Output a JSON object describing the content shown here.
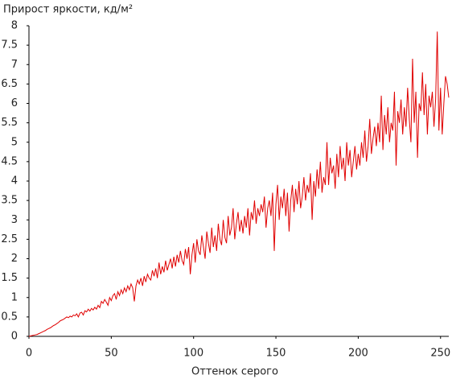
{
  "chart_data": {
    "type": "line",
    "title": "Прирост яркости, кд/м²",
    "x_label": "Оттенок серого",
    "color": "#e00000",
    "x": [
      0,
      1,
      2,
      3,
      4,
      5,
      6,
      7,
      8,
      9,
      10,
      11,
      12,
      13,
      14,
      15,
      16,
      17,
      18,
      19,
      20,
      21,
      22,
      23,
      24,
      25,
      26,
      27,
      28,
      29,
      30,
      31,
      32,
      33,
      34,
      35,
      36,
      37,
      38,
      39,
      40,
      41,
      42,
      43,
      44,
      45,
      46,
      47,
      48,
      49,
      50,
      51,
      52,
      53,
      54,
      55,
      56,
      57,
      58,
      59,
      60,
      61,
      62,
      63,
      64,
      65,
      66,
      67,
      68,
      69,
      70,
      71,
      72,
      73,
      74,
      75,
      76,
      77,
      78,
      79,
      80,
      81,
      82,
      83,
      84,
      85,
      86,
      87,
      88,
      89,
      90,
      91,
      92,
      93,
      94,
      95,
      96,
      97,
      98,
      99,
      100,
      101,
      102,
      103,
      104,
      105,
      106,
      107,
      108,
      109,
      110,
      111,
      112,
      113,
      114,
      115,
      116,
      117,
      118,
      119,
      120,
      121,
      122,
      123,
      124,
      125,
      126,
      127,
      128,
      129,
      130,
      131,
      132,
      133,
      134,
      135,
      136,
      137,
      138,
      139,
      140,
      141,
      142,
      143,
      144,
      145,
      146,
      147,
      148,
      149,
      150,
      151,
      152,
      153,
      154,
      155,
      156,
      157,
      158,
      159,
      160,
      161,
      162,
      163,
      164,
      165,
      166,
      167,
      168,
      169,
      170,
      171,
      172,
      173,
      174,
      175,
      176,
      177,
      178,
      179,
      180,
      181,
      182,
      183,
      184,
      185,
      186,
      187,
      188,
      189,
      190,
      191,
      192,
      193,
      194,
      195,
      196,
      197,
      198,
      199,
      200,
      201,
      202,
      203,
      204,
      205,
      206,
      207,
      208,
      209,
      210,
      211,
      212,
      213,
      214,
      215,
      216,
      217,
      218,
      219,
      220,
      221,
      222,
      223,
      224,
      225,
      226,
      227,
      228,
      229,
      230,
      231,
      232,
      233,
      234,
      235,
      236,
      237,
      238,
      239,
      240,
      241,
      242,
      243,
      244,
      245,
      246,
      247,
      248,
      249,
      250,
      251,
      252,
      253,
      254,
      255
    ],
    "values": [
      0,
      0.01,
      0.02,
      0.03,
      0.04,
      0.05,
      0.07,
      0.09,
      0.11,
      0.13,
      0.15,
      0.18,
      0.2,
      0.22,
      0.25,
      0.28,
      0.3,
      0.33,
      0.36,
      0.4,
      0.42,
      0.44,
      0.47,
      0.5,
      0.48,
      0.52,
      0.5,
      0.55,
      0.53,
      0.58,
      0.5,
      0.6,
      0.62,
      0.55,
      0.66,
      0.63,
      0.7,
      0.65,
      0.72,
      0.68,
      0.75,
      0.7,
      0.8,
      0.74,
      0.9,
      0.85,
      0.95,
      0.88,
      0.8,
      1.0,
      0.92,
      1.05,
      1.1,
      0.95,
      1.15,
      1.05,
      1.2,
      1.1,
      1.25,
      1.15,
      1.3,
      1.2,
      1.35,
      1.25,
      0.9,
      1.3,
      1.45,
      1.35,
      1.5,
      1.3,
      1.55,
      1.4,
      1.6,
      1.5,
      1.45,
      1.7,
      1.55,
      1.75,
      1.5,
      1.9,
      1.6,
      1.8,
      1.65,
      1.95,
      1.7,
      1.85,
      2.0,
      1.75,
      2.05,
      1.8,
      2.1,
      1.9,
      2.2,
      1.95,
      1.85,
      2.25,
      2.0,
      2.3,
      1.6,
      2.1,
      2.4,
      1.9,
      2.5,
      2.2,
      2.1,
      2.6,
      2.3,
      2.0,
      2.7,
      2.4,
      2.15,
      2.8,
      2.3,
      2.6,
      2.2,
      2.9,
      2.5,
      2.35,
      3.0,
      2.55,
      2.4,
      3.1,
      2.6,
      2.8,
      3.3,
      2.5,
      2.9,
      3.2,
      2.7,
      3.0,
      2.65,
      3.1,
      2.8,
      3.3,
      2.6,
      3.2,
      3.0,
      3.5,
      2.9,
      3.3,
      3.1,
      3.4,
      3.2,
      3.6,
      2.8,
      3.3,
      3.5,
      3.1,
      3.7,
      2.2,
      3.4,
      3.9,
      3.0,
      3.6,
      3.3,
      3.8,
      3.1,
      3.7,
      2.7,
      3.5,
      3.9,
      3.2,
      3.8,
      3.4,
      4.0,
      3.3,
      3.6,
      4.1,
      3.5,
      3.9,
      3.7,
      4.2,
      3.0,
      4.0,
      3.6,
      4.3,
      3.8,
      4.5,
      3.7,
      4.1,
      3.9,
      5.0,
      3.9,
      4.6,
      4.2,
      4.4,
      3.8,
      4.7,
      4.1,
      4.9,
      4.3,
      4.6,
      4.0,
      5.0,
      4.4,
      4.8,
      4.1,
      4.5,
      4.9,
      4.3,
      4.7,
      4.4,
      5.0,
      4.6,
      5.3,
      4.5,
      4.9,
      5.6,
      4.7,
      5.1,
      5.4,
      4.9,
      5.5,
      5.0,
      6.2,
      4.8,
      5.7,
      5.2,
      5.9,
      5.0,
      5.5,
      5.3,
      6.3,
      4.4,
      5.8,
      5.5,
      6.1,
      5.2,
      5.9,
      5.4,
      6.4,
      5.6,
      5.0,
      7.15,
      5.5,
      6.3,
      4.6,
      6.0,
      5.8,
      6.8,
      5.7,
      6.5,
      5.2,
      6.2,
      5.9,
      6.3,
      5.4,
      6.1,
      7.85,
      5.3,
      6.4,
      5.2,
      6.0,
      6.7,
      6.5,
      6.15
    ],
    "xlim": [
      0,
      255
    ],
    "xticks": [
      0,
      50,
      100,
      150,
      200,
      250
    ],
    "ylim": [
      0,
      8
    ],
    "yticks": [
      0,
      0.5,
      1,
      1.5,
      2,
      2.5,
      3,
      3.5,
      4,
      4.5,
      5,
      5.5,
      6,
      6.5,
      7,
      7.5,
      8
    ]
  }
}
